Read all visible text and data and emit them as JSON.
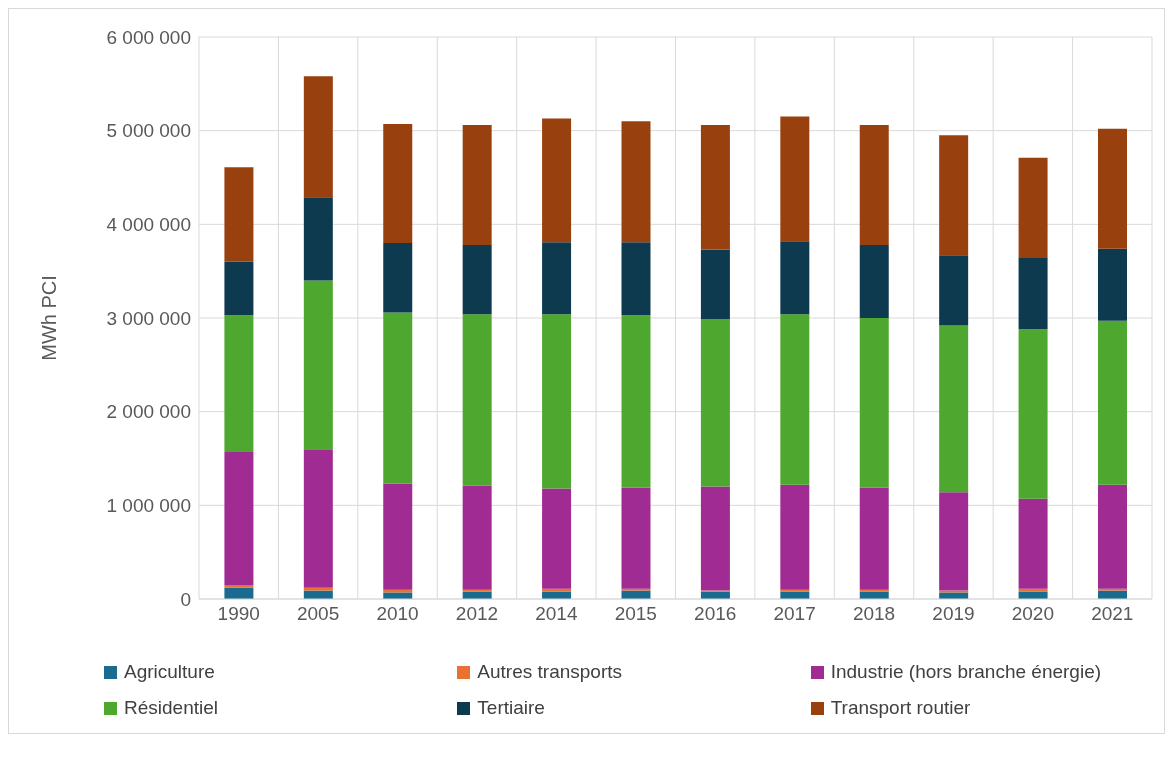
{
  "chart_data": {
    "type": "bar",
    "stacked": true,
    "ylabel": "MWh PCI",
    "categories": [
      "1990",
      "2005",
      "2010",
      "2012",
      "2014",
      "2015",
      "2016",
      "2017",
      "2018",
      "2019",
      "2020",
      "2021"
    ],
    "series": [
      {
        "name": "Agriculture",
        "color": "#196b8f",
        "values": [
          120000,
          90000,
          70000,
          80000,
          80000,
          90000,
          80000,
          80000,
          80000,
          70000,
          80000,
          90000
        ]
      },
      {
        "name": "Autres transports",
        "color": "#e97132",
        "values": [
          30000,
          30000,
          30000,
          20000,
          30000,
          20000,
          10000,
          20000,
          20000,
          20000,
          30000,
          20000
        ]
      },
      {
        "name": "Industrie (hors branche énergie)",
        "color": "#a02b93",
        "values": [
          1420000,
          1480000,
          1130000,
          1110000,
          1070000,
          1080000,
          1110000,
          1120000,
          1090000,
          1050000,
          960000,
          1110000
        ]
      },
      {
        "name": "Résidentiel",
        "color": "#4ea72e",
        "values": [
          1460000,
          1800000,
          1830000,
          1830000,
          1860000,
          1840000,
          1790000,
          1820000,
          1810000,
          1780000,
          1810000,
          1750000
        ]
      },
      {
        "name": "Tertiaire",
        "color": "#0e3a50",
        "values": [
          570000,
          890000,
          740000,
          740000,
          770000,
          780000,
          740000,
          780000,
          780000,
          750000,
          760000,
          770000
        ]
      },
      {
        "name": "Transport routier",
        "color": "#99400f",
        "values": [
          1010000,
          1290000,
          1270000,
          1280000,
          1320000,
          1290000,
          1330000,
          1330000,
          1280000,
          1280000,
          1070000,
          1280000
        ]
      }
    ],
    "ylim": [
      0,
      6000000
    ],
    "yticks": [
      {
        "value": 0,
        "label": "0"
      },
      {
        "value": 1000000,
        "label": "1 000 000"
      },
      {
        "value": 2000000,
        "label": "2 000 000"
      },
      {
        "value": 3000000,
        "label": "3 000 000"
      },
      {
        "value": 4000000,
        "label": "4 000 000"
      },
      {
        "value": 5000000,
        "label": "5 000 000"
      },
      {
        "value": 6000000,
        "label": "6 000 000"
      }
    ],
    "grid": true,
    "legend": "bottom"
  }
}
